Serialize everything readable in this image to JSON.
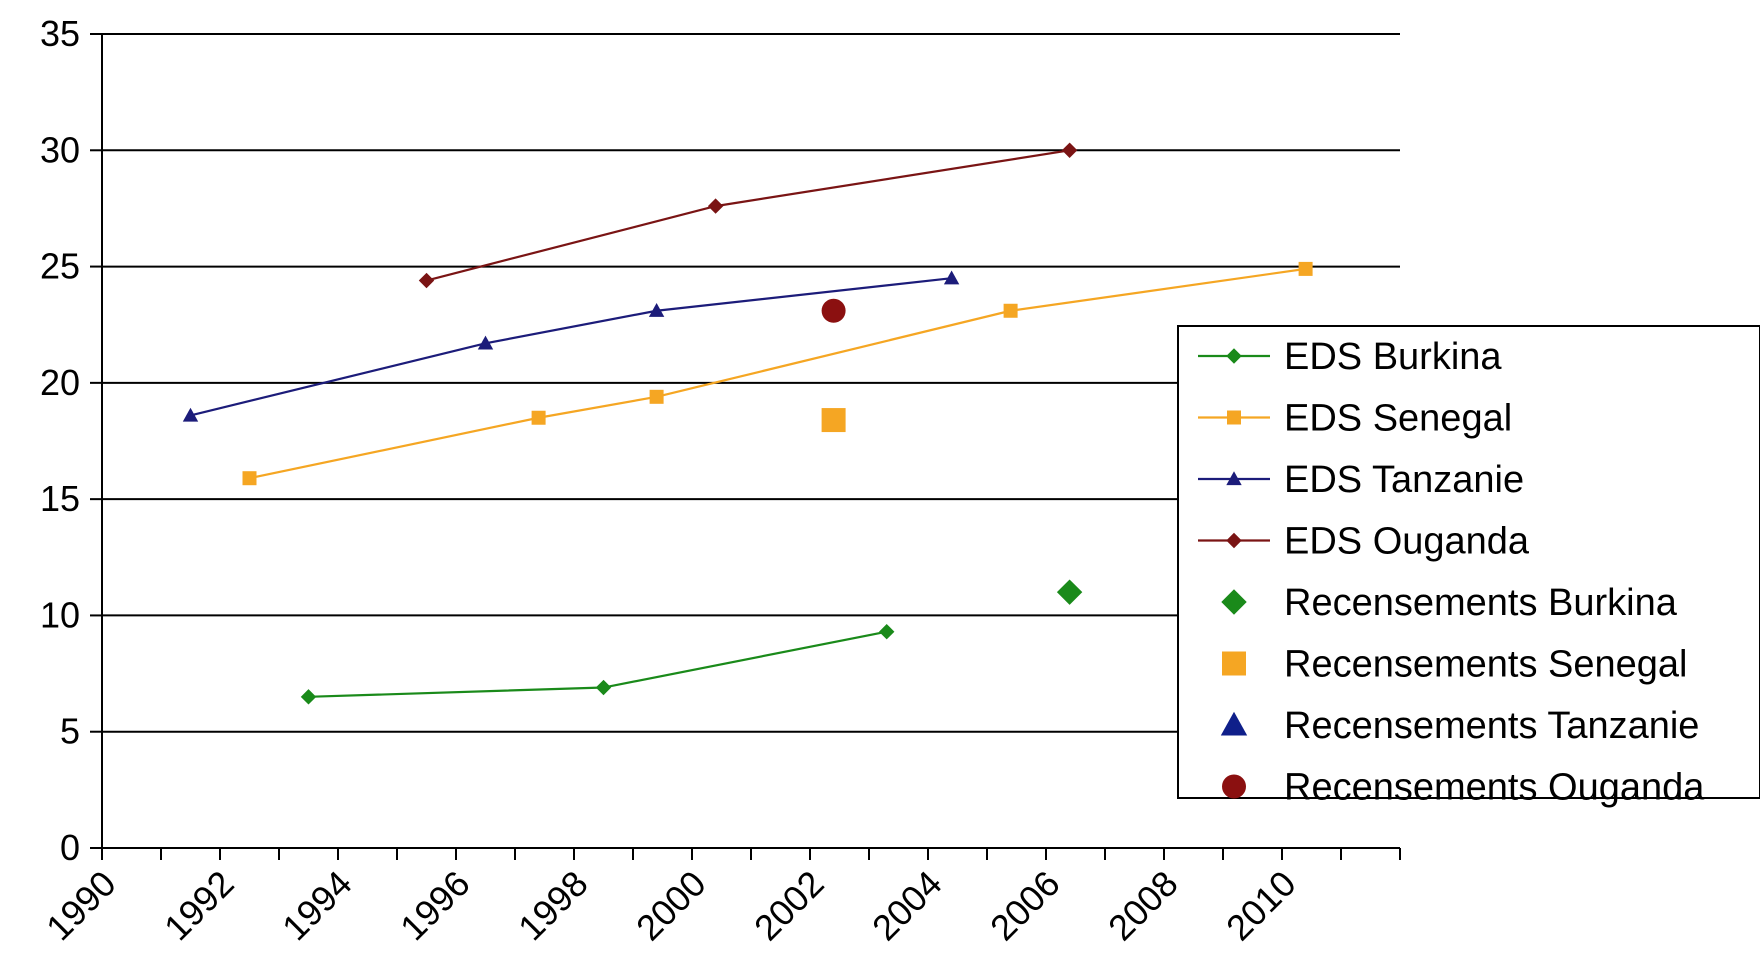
{
  "chart_data": {
    "type": "line",
    "title": "",
    "xlabel": "",
    "ylabel": "",
    "xlim": [
      1990,
      2012
    ],
    "ylim": [
      0,
      35
    ],
    "x_ticks": [
      "1990",
      "1992",
      "1994",
      "1996",
      "1998",
      "2000",
      "2002",
      "2004",
      "2006",
      "2008",
      "2010"
    ],
    "y_ticks": [
      "0",
      "5",
      "10",
      "15",
      "20",
      "25",
      "30",
      "35"
    ],
    "grid": "horizontal",
    "legend_position": "right",
    "series": [
      {
        "name": "EDS Burkina",
        "color": "#1a8a1a",
        "marker": "diamond",
        "line": true,
        "points": [
          [
            1993.5,
            6.5
          ],
          [
            1998.5,
            6.9
          ],
          [
            2003.3,
            9.3
          ]
        ]
      },
      {
        "name": "EDS Senegal",
        "color": "#f5a623",
        "marker": "square",
        "line": true,
        "points": [
          [
            1992.5,
            15.9
          ],
          [
            1997.4,
            18.5
          ],
          [
            1999.4,
            19.4
          ],
          [
            2005.4,
            23.1
          ],
          [
            2010.4,
            24.9
          ]
        ]
      },
      {
        "name": "EDS Tanzanie",
        "color": "#1c1c7a",
        "marker": "triangle",
        "line": true,
        "points": [
          [
            1991.5,
            18.6
          ],
          [
            1996.5,
            21.7
          ],
          [
            1999.4,
            23.1
          ],
          [
            2004.4,
            24.5
          ]
        ]
      },
      {
        "name": "EDS Ouganda",
        "color": "#7a1414",
        "marker": "diamond",
        "line": true,
        "points": [
          [
            1995.5,
            24.4
          ],
          [
            2000.4,
            27.6
          ],
          [
            2006.4,
            30.0
          ]
        ]
      },
      {
        "name": "Recensements Burkina",
        "color": "#1a8a1a",
        "marker": "diamond-large",
        "line": false,
        "points": [
          [
            2006.4,
            11.0
          ]
        ]
      },
      {
        "name": "Recensements Senegal",
        "color": "#f5a623",
        "marker": "square-large",
        "line": false,
        "points": [
          [
            2002.4,
            18.4
          ]
        ]
      },
      {
        "name": "Recensements Tanzanie",
        "color": "#0f1f8a",
        "marker": "triangle-large",
        "line": false,
        "points": []
      },
      {
        "name": "Recensements Ouganda",
        "color": "#8b1010",
        "marker": "circle-large",
        "line": false,
        "points": [
          [
            2002.4,
            23.1
          ]
        ]
      }
    ]
  }
}
